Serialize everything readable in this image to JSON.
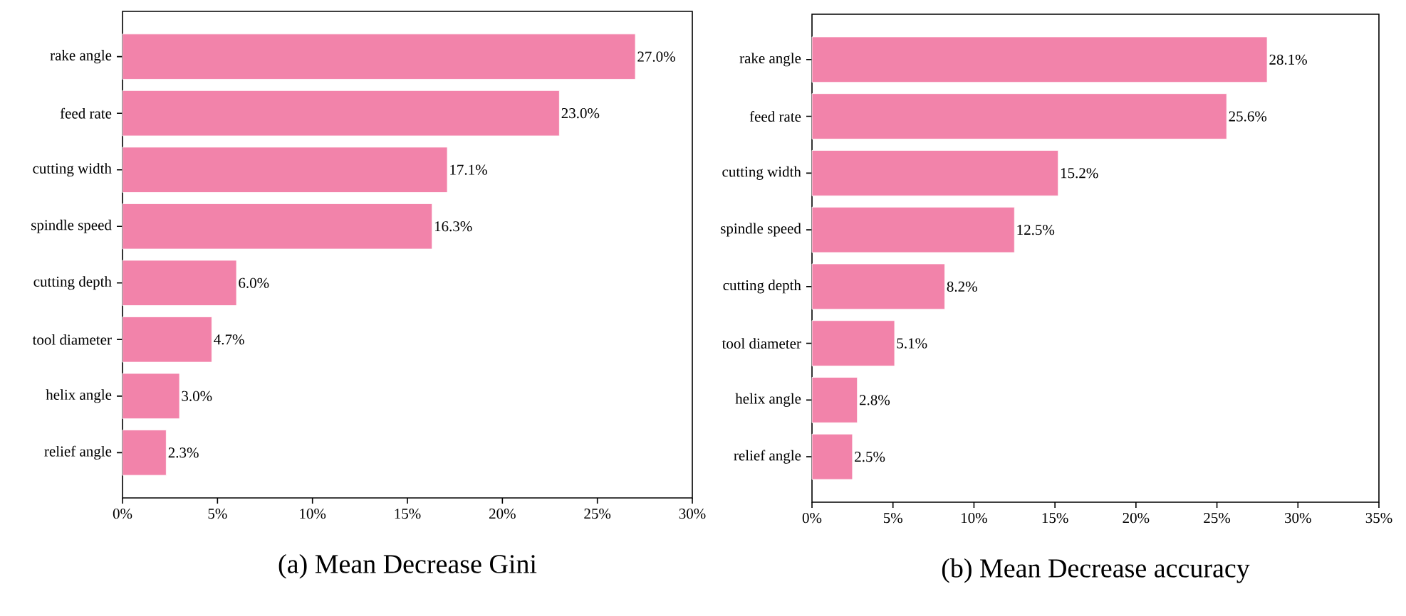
{
  "chart_data": [
    {
      "type": "bar",
      "orientation": "horizontal",
      "title": "(a) Mean Decrease Gini",
      "categories": [
        "rake angle",
        "feed rate",
        "cutting width",
        "spindle speed",
        "cutting depth",
        "tool diameter",
        "helix angle",
        "relief angle"
      ],
      "values": [
        27.0,
        23.0,
        17.1,
        16.3,
        6.0,
        4.7,
        3.0,
        2.3
      ],
      "value_labels": [
        "27.0%",
        "23.0%",
        "17.1%",
        "16.3%",
        "6.0%",
        "4.7%",
        "3.0%",
        "2.3%"
      ],
      "color": "#f283aa",
      "xlim": [
        0,
        30
      ],
      "xticks": [
        {
          "value": 0,
          "label": "0%"
        },
        {
          "value": 5,
          "label": "5%"
        },
        {
          "value": 10,
          "label": "10%"
        },
        {
          "value": 15,
          "label": "15%"
        },
        {
          "value": 20,
          "label": "20%"
        },
        {
          "value": 25,
          "label": "25%"
        },
        {
          "value": 30,
          "label": "30%"
        }
      ]
    },
    {
      "type": "bar",
      "orientation": "horizontal",
      "title": "(b) Mean Decrease accuracy",
      "categories": [
        "rake angle",
        "feed rate",
        "cutting width",
        "spindle speed",
        "cutting depth",
        "tool diameter",
        "helix angle",
        "relief angle"
      ],
      "values": [
        28.1,
        25.6,
        15.2,
        12.5,
        8.2,
        5.1,
        2.8,
        2.5
      ],
      "value_labels": [
        "28.1%",
        "25.6%",
        "15.2%",
        "12.5%",
        "8.2%",
        "5.1%",
        "2.8%",
        "2.5%"
      ],
      "color": "#f283aa",
      "xlim": [
        0,
        35
      ],
      "xticks": [
        {
          "value": 0,
          "label": "0%"
        },
        {
          "value": 5,
          "label": "5%"
        },
        {
          "value": 10,
          "label": "10%"
        },
        {
          "value": 15,
          "label": "15%"
        },
        {
          "value": 20,
          "label": "20%"
        },
        {
          "value": 25,
          "label": "25%"
        },
        {
          "value": 30,
          "label": "30%"
        },
        {
          "value": 35,
          "label": "35%"
        }
      ]
    }
  ]
}
